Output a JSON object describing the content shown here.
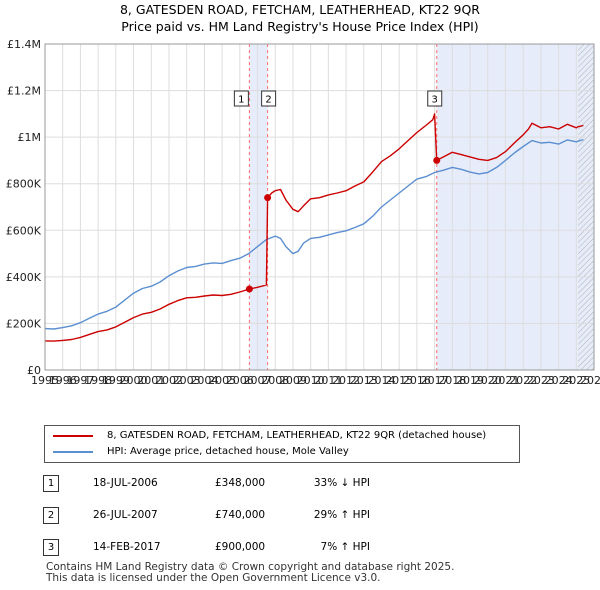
{
  "title": {
    "line1": "8, GATESDEN ROAD, FETCHAM, LEATHERHEAD, KT22 9QR",
    "line2": "Price paid vs. HM Land Registry's House Price Index (HPI)"
  },
  "colors": {
    "property": "#cc0000",
    "hpi": "#5b8fd0",
    "shade": "#e6ecfa",
    "grid": "#dddddd",
    "event_line": "#ff6b6b"
  },
  "chart_data": {
    "type": "line",
    "xlabel": "",
    "ylabel": "",
    "xlim": [
      1995,
      2026
    ],
    "ylim": [
      0,
      1400000
    ],
    "x_ticks": [
      "1995",
      "1996",
      "1997",
      "1998",
      "1999",
      "2000",
      "2001",
      "2002",
      "2003",
      "2004",
      "2005",
      "2006",
      "2007",
      "2008",
      "2009",
      "2010",
      "2011",
      "2012",
      "2013",
      "2014",
      "2015",
      "2016",
      "2017",
      "2018",
      "2019",
      "2020",
      "2021",
      "2022",
      "2023",
      "2024",
      "2025",
      "2026"
    ],
    "y_ticks": [
      {
        "value": 0,
        "label": "£0"
      },
      {
        "value": 200000,
        "label": "£200K"
      },
      {
        "value": 400000,
        "label": "£400K"
      },
      {
        "value": 600000,
        "label": "£600K"
      },
      {
        "value": 800000,
        "label": "£800K"
      },
      {
        "value": 1000000,
        "label": "£1M"
      },
      {
        "value": 1200000,
        "label": "£1.2M"
      },
      {
        "value": 1400000,
        "label": "£1.4M"
      }
    ],
    "shaded_periods": [
      {
        "start": 2006.54,
        "end": 2007.57
      },
      {
        "start": 2017.12,
        "end": 2026
      }
    ],
    "forecast_start": 2025.1,
    "series": [
      {
        "name": "8, GATESDEN ROAD, FETCHAM, LEATHERHEAD, KT22 9QR (detached house)",
        "x": [
          1995,
          1995.5,
          1996,
          1996.5,
          1997,
          1997.5,
          1998,
          1998.5,
          1999,
          1999.5,
          2000,
          2000.5,
          2001,
          2001.5,
          2002,
          2002.5,
          2003,
          2003.5,
          2004,
          2004.5,
          2005,
          2005.5,
          2006,
          2006.54,
          2007,
          2007.5,
          2007.57,
          2007.8,
          2008,
          2008.3,
          2008.6,
          2009,
          2009.3,
          2009.6,
          2010,
          2010.5,
          2011,
          2011.5,
          2012,
          2012.5,
          2013,
          2013.5,
          2014,
          2014.5,
          2015,
          2015.5,
          2016,
          2016.5,
          2016.9,
          2017.0,
          2017.12,
          2017.5,
          2018,
          2018.5,
          2019,
          2019.5,
          2020,
          2020.5,
          2021,
          2021.5,
          2022,
          2022.3,
          2022.5,
          2023,
          2023.5,
          2024,
          2024.5,
          2025,
          2025.1,
          2025.4
        ],
        "values": [
          125000,
          124000,
          127000,
          131000,
          140000,
          153000,
          165000,
          172000,
          185000,
          205000,
          225000,
          240000,
          248000,
          262000,
          282000,
          298000,
          310000,
          312000,
          318000,
          322000,
          320000,
          325000,
          335000,
          348000,
          355000,
          365000,
          740000,
          760000,
          770000,
          775000,
          730000,
          690000,
          680000,
          705000,
          735000,
          740000,
          752000,
          760000,
          770000,
          790000,
          808000,
          850000,
          895000,
          920000,
          950000,
          985000,
          1020000,
          1050000,
          1075000,
          1100000,
          900000,
          915000,
          935000,
          925000,
          915000,
          905000,
          900000,
          912000,
          938000,
          975000,
          1010000,
          1035000,
          1060000,
          1040000,
          1045000,
          1035000,
          1055000,
          1040000,
          1045000,
          1050000
        ]
      },
      {
        "name": "HPI: Average price, detached house, Mole Valley",
        "x": [
          1995,
          1995.5,
          1996,
          1996.5,
          1997,
          1997.5,
          1998,
          1998.5,
          1999,
          1999.5,
          2000,
          2000.5,
          2001,
          2001.5,
          2002,
          2002.5,
          2003,
          2003.5,
          2004,
          2004.5,
          2005,
          2005.5,
          2006,
          2006.5,
          2007,
          2007.5,
          2008,
          2008.3,
          2008.6,
          2009,
          2009.3,
          2009.6,
          2010,
          2010.5,
          2011,
          2011.5,
          2012,
          2012.5,
          2013,
          2013.5,
          2014,
          2014.5,
          2015,
          2015.5,
          2016,
          2016.5,
          2017,
          2017.5,
          2018,
          2018.5,
          2019,
          2019.5,
          2020,
          2020.5,
          2021,
          2021.5,
          2022,
          2022.5,
          2023,
          2023.5,
          2024,
          2024.5,
          2025,
          2025.4
        ],
        "values": [
          178000,
          176000,
          182000,
          190000,
          203000,
          222000,
          240000,
          252000,
          270000,
          300000,
          330000,
          350000,
          360000,
          378000,
          405000,
          425000,
          440000,
          445000,
          455000,
          460000,
          458000,
          470000,
          480000,
          500000,
          530000,
          560000,
          575000,
          565000,
          530000,
          500000,
          510000,
          545000,
          565000,
          570000,
          580000,
          590000,
          598000,
          612000,
          628000,
          660000,
          700000,
          730000,
          760000,
          790000,
          820000,
          830000,
          848000,
          858000,
          870000,
          862000,
          850000,
          842000,
          848000,
          870000,
          900000,
          932000,
          960000,
          985000,
          975000,
          978000,
          970000,
          988000,
          980000,
          990000
        ]
      }
    ],
    "events": [
      {
        "label": "1",
        "x": 2006.54,
        "value": 348000
      },
      {
        "label": "2",
        "x": 2007.57,
        "value": 740000
      },
      {
        "label": "3",
        "x": 2017.12,
        "value": 900000
      }
    ]
  },
  "legend": {
    "property_label": "8, GATESDEN ROAD, FETCHAM, LEATHERHEAD, KT22 9QR (detached house)",
    "hpi_label": "HPI: Average price, detached house, Mole Valley"
  },
  "transactions": [
    {
      "num": "1",
      "date": "18-JUL-2006",
      "price": "£348,000",
      "hpi": "33% ↓ HPI"
    },
    {
      "num": "2",
      "date": "26-JUL-2007",
      "price": "£740,000",
      "hpi": "29% ↑ HPI"
    },
    {
      "num": "3",
      "date": "14-FEB-2017",
      "price": "£900,000",
      "hpi": "7% ↑ HPI"
    }
  ],
  "footer": {
    "line1": "Contains HM Land Registry data © Crown copyright and database right 2025.",
    "line2": "This data is licensed under the Open Government Licence v3.0."
  }
}
